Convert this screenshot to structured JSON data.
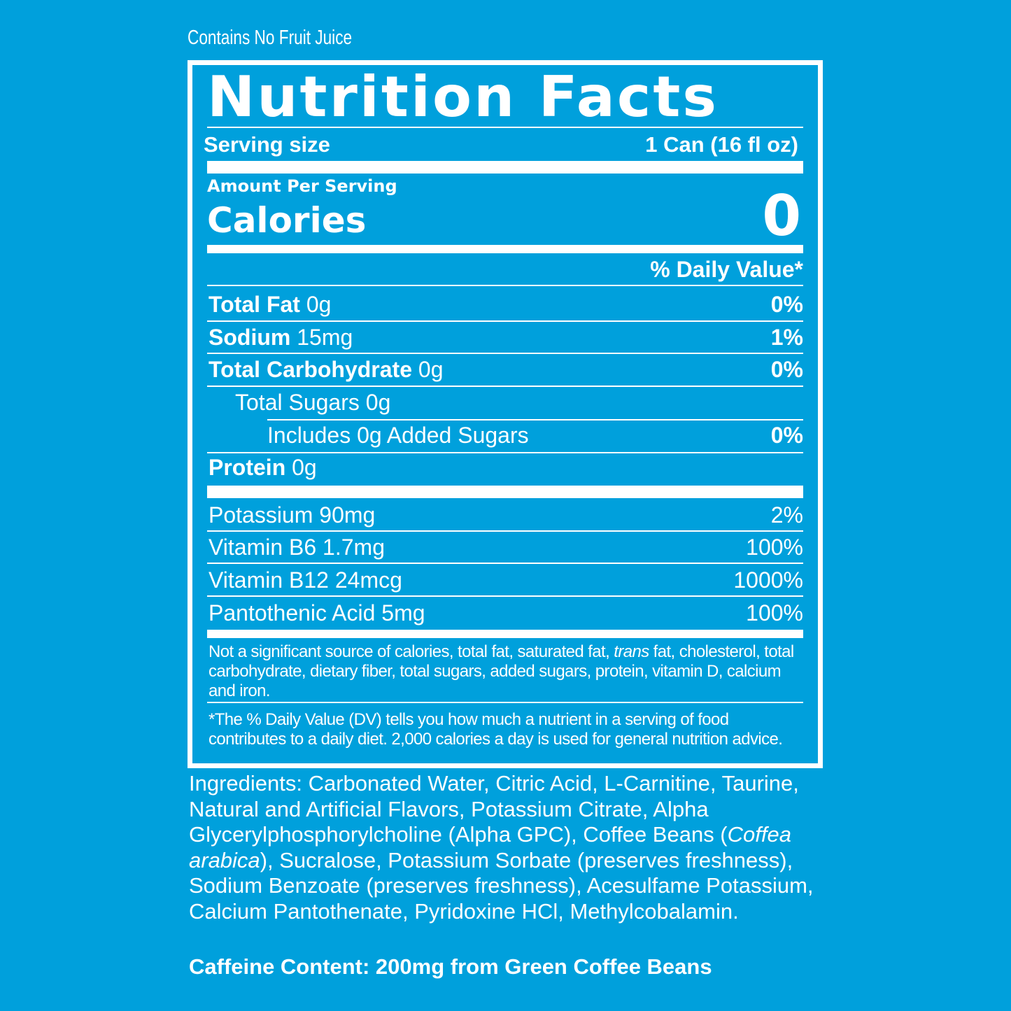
{
  "top_note": "Contains No Fruit Juice",
  "title": "Nutrition Facts",
  "serving": {
    "label": "Serving size",
    "value": "1 Can (16 fl oz)"
  },
  "amount_per_serving": "Amount Per Serving",
  "calories": {
    "label": "Calories",
    "value": "0"
  },
  "dv_header": "% Daily Value*",
  "nutrients": [
    {
      "name": "Total Fat",
      "amount": "0g",
      "dv": "0%"
    },
    {
      "name": "Sodium",
      "amount": "15mg",
      "dv": "1%"
    },
    {
      "name": "Total Carbohydrate",
      "amount": "0g",
      "dv": "0%"
    },
    {
      "name": "Total Sugars 0g",
      "amount": "",
      "dv": ""
    },
    {
      "name": "Includes 0g Added Sugars",
      "amount": "",
      "dv": "0%"
    },
    {
      "name": "Protein",
      "amount": "0g",
      "dv": ""
    }
  ],
  "vitamins": [
    {
      "name": "Potassium 90mg",
      "dv": "2%"
    },
    {
      "name": "Vitamin B6 1.7mg",
      "dv": "100%"
    },
    {
      "name": "Vitamin B12 24mcg",
      "dv": "1000%"
    },
    {
      "name": "Pantothenic Acid 5mg",
      "dv": "100%"
    }
  ],
  "footnote1": {
    "pre": "Not a significant source of calories, total fat, saturated fat, ",
    "italic": "trans",
    "post": " fat, cholesterol, total carbohydrate, dietary fiber, total  sugars, added sugars, protein, vitamin D, calcium and iron."
  },
  "footnote2": "*The % Daily Value (DV) tells you how much a nutrient in a serving of food contributes to a daily diet. 2,000 calories a day is used for general nutrition advice.",
  "ingredients": {
    "pre": "Ingredients: Carbonated Water, Citric Acid, L-Carnitine, Taurine, Natural and Artificial Flavors, Potassium Citrate, Alpha Glycerylphosphorylcholine (Alpha GPC), Coffee Beans (",
    "italic": "Coffea arabica",
    "post": "), Sucralose, Potassium Sorbate (preserves freshness), Sodium Benzoate (preserves freshness), Acesulfame Potassium, Calcium Pantothenate, Pyridoxine HCl, Methylcobalamin."
  },
  "caffeine": "Caffeine Content: 200mg from Green Coffee Beans",
  "colors": {
    "background": "#00a0dc",
    "text": "#ffffff"
  }
}
